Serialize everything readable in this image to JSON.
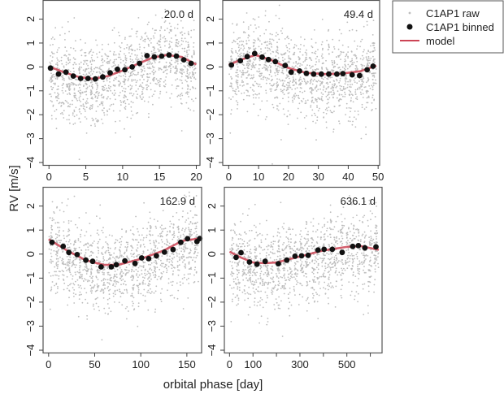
{
  "chart_data": {
    "type": "scatter",
    "xlabel": "orbital phase [day]",
    "ylabel": "RV [m/s]",
    "legend": {
      "placement": "top-right-outside",
      "entries": [
        {
          "label": "C1AP1 raw",
          "marker": "small-dot",
          "color": "#bdbdbd"
        },
        {
          "label": "C1AP1 binned",
          "marker": "filled-circle",
          "color": "#111111"
        },
        {
          "label": "model",
          "marker": "line",
          "color": "#cc4455"
        }
      ]
    },
    "panels": [
      {
        "title": "20.0 d",
        "xlim": [
          -0.8,
          20.5
        ],
        "ylim": [
          -4.1,
          2.8
        ],
        "xticks": [
          0,
          5,
          10,
          15,
          20
        ],
        "xticklabels": [
          "0",
          "5",
          "10",
          "15",
          "20"
        ],
        "yticks": [
          -4,
          -3,
          -2,
          -1,
          0,
          1,
          2
        ],
        "binned": [
          [
            0.2,
            -0.05
          ],
          [
            1.3,
            -0.3
          ],
          [
            2.3,
            -0.22
          ],
          [
            3.3,
            -0.38
          ],
          [
            4.3,
            -0.48
          ],
          [
            5.3,
            -0.48
          ],
          [
            6.3,
            -0.5
          ],
          [
            7.3,
            -0.42
          ],
          [
            8.3,
            -0.25
          ],
          [
            9.3,
            -0.1
          ],
          [
            10.3,
            -0.12
          ],
          [
            11.3,
            0.0
          ],
          [
            12.3,
            0.15
          ],
          [
            13.3,
            0.47
          ],
          [
            14.3,
            0.42
          ],
          [
            15.3,
            0.45
          ],
          [
            16.3,
            0.5
          ],
          [
            17.3,
            0.45
          ],
          [
            18.3,
            0.3
          ],
          [
            19.3,
            0.15
          ]
        ],
        "model": [
          [
            0,
            0.02
          ],
          [
            2,
            -0.22
          ],
          [
            4,
            -0.42
          ],
          [
            6,
            -0.5
          ],
          [
            8,
            -0.38
          ],
          [
            10,
            -0.15
          ],
          [
            12,
            0.12
          ],
          [
            14,
            0.38
          ],
          [
            16,
            0.5
          ],
          [
            18,
            0.42
          ],
          [
            20,
            0.1
          ]
        ]
      },
      {
        "title": "49.4 d",
        "xlim": [
          -2,
          50.5
        ],
        "ylim": [
          -4.1,
          2.8
        ],
        "xticks": [
          0,
          10,
          20,
          30,
          40,
          50
        ],
        "xticklabels": [
          "0",
          "10",
          "20",
          "30",
          "40",
          "50"
        ],
        "yticks": [
          -4,
          -3,
          -2,
          -1,
          0,
          1,
          2
        ],
        "binned": [
          [
            0.9,
            0.08
          ],
          [
            3.9,
            0.26
          ],
          [
            6.2,
            0.43
          ],
          [
            8.7,
            0.56
          ],
          [
            11.2,
            0.41
          ],
          [
            13.3,
            0.31
          ],
          [
            15.6,
            0.22
          ],
          [
            18.9,
            0.06
          ],
          [
            20.9,
            -0.22
          ],
          [
            23.7,
            -0.17
          ],
          [
            26,
            -0.27
          ],
          [
            28.4,
            -0.3
          ],
          [
            31,
            -0.3
          ],
          [
            33.5,
            -0.3
          ],
          [
            36.2,
            -0.3
          ],
          [
            38.2,
            -0.28
          ],
          [
            41.3,
            -0.33
          ],
          [
            43.8,
            -0.36
          ],
          [
            46.3,
            -0.12
          ],
          [
            48.3,
            0.03
          ]
        ],
        "model": [
          [
            0,
            0.08
          ],
          [
            4,
            0.3
          ],
          [
            9,
            0.5
          ],
          [
            14,
            0.3
          ],
          [
            20,
            -0.05
          ],
          [
            26,
            -0.25
          ],
          [
            32,
            -0.3
          ],
          [
            38,
            -0.28
          ],
          [
            44,
            -0.18
          ],
          [
            49.4,
            0.05
          ]
        ]
      },
      {
        "title": "162.9 d",
        "xlim": [
          -6,
          166
        ],
        "ylim": [
          -4.1,
          2.8
        ],
        "xticks": [
          0,
          50,
          100,
          150
        ],
        "xticklabels": [
          "0",
          "50",
          "100",
          "150"
        ],
        "yticks": [
          -4,
          -3,
          -2,
          -1,
          0,
          1,
          2
        ],
        "binned": [
          [
            3.7,
            0.49
          ],
          [
            15.8,
            0.32
          ],
          [
            22,
            0.07
          ],
          [
            31,
            -0.02
          ],
          [
            40.4,
            -0.25
          ],
          [
            47.8,
            -0.3
          ],
          [
            57,
            -0.53
          ],
          [
            68,
            -0.53
          ],
          [
            73.5,
            -0.44
          ],
          [
            82.7,
            -0.28
          ],
          [
            93.8,
            -0.39
          ],
          [
            101,
            -0.16
          ],
          [
            108.5,
            -0.19
          ],
          [
            117,
            -0.07
          ],
          [
            125.7,
            0.08
          ],
          [
            135,
            0.19
          ],
          [
            143.4,
            0.49
          ],
          [
            150.7,
            0.64
          ],
          [
            161,
            0.52
          ],
          [
            164,
            0.65
          ]
        ],
        "model": [
          [
            0,
            0.62
          ],
          [
            20,
            0.15
          ],
          [
            40,
            -0.25
          ],
          [
            60,
            -0.45
          ],
          [
            75,
            -0.45
          ],
          [
            100,
            -0.2
          ],
          [
            125,
            0.15
          ],
          [
            145,
            0.55
          ],
          [
            162.9,
            0.65
          ]
        ]
      },
      {
        "title": "636.1 d",
        "xlim": [
          -22,
          650
        ],
        "ylim": [
          -4.1,
          2.8
        ],
        "xticks": [
          0,
          100,
          200,
          300,
          400,
          500,
          600
        ],
        "xticklabels": [
          "0",
          "100",
          "",
          "300",
          "",
          "500",
          ""
        ],
        "yticks": [
          -4,
          -3,
          -2,
          -1,
          0,
          1,
          2
        ],
        "binned": [
          [
            28,
            -0.14
          ],
          [
            49,
            0.06
          ],
          [
            85,
            -0.33
          ],
          [
            117,
            -0.42
          ],
          [
            152,
            -0.3
          ],
          [
            208,
            -0.4
          ],
          [
            244,
            -0.25
          ],
          [
            279,
            -0.09
          ],
          [
            307,
            -0.07
          ],
          [
            335,
            -0.05
          ],
          [
            377,
            0.17
          ],
          [
            403,
            0.2
          ],
          [
            438,
            0.2
          ],
          [
            480,
            0.07
          ],
          [
            525,
            0.32
          ],
          [
            549,
            0.35
          ],
          [
            577,
            0.26
          ],
          [
            624,
            0.3
          ]
        ],
        "model": [
          [
            0,
            0.1
          ],
          [
            50,
            -0.15
          ],
          [
            100,
            -0.35
          ],
          [
            150,
            -0.38
          ],
          [
            200,
            -0.35
          ],
          [
            300,
            -0.1
          ],
          [
            400,
            0.15
          ],
          [
            500,
            0.3
          ],
          [
            560,
            0.33
          ],
          [
            636,
            0.18
          ]
        ]
      }
    ]
  },
  "colors": {
    "raw": "#bdbdbd",
    "binned": "#111111",
    "model": "#cc4455",
    "frame": "#555555"
  }
}
